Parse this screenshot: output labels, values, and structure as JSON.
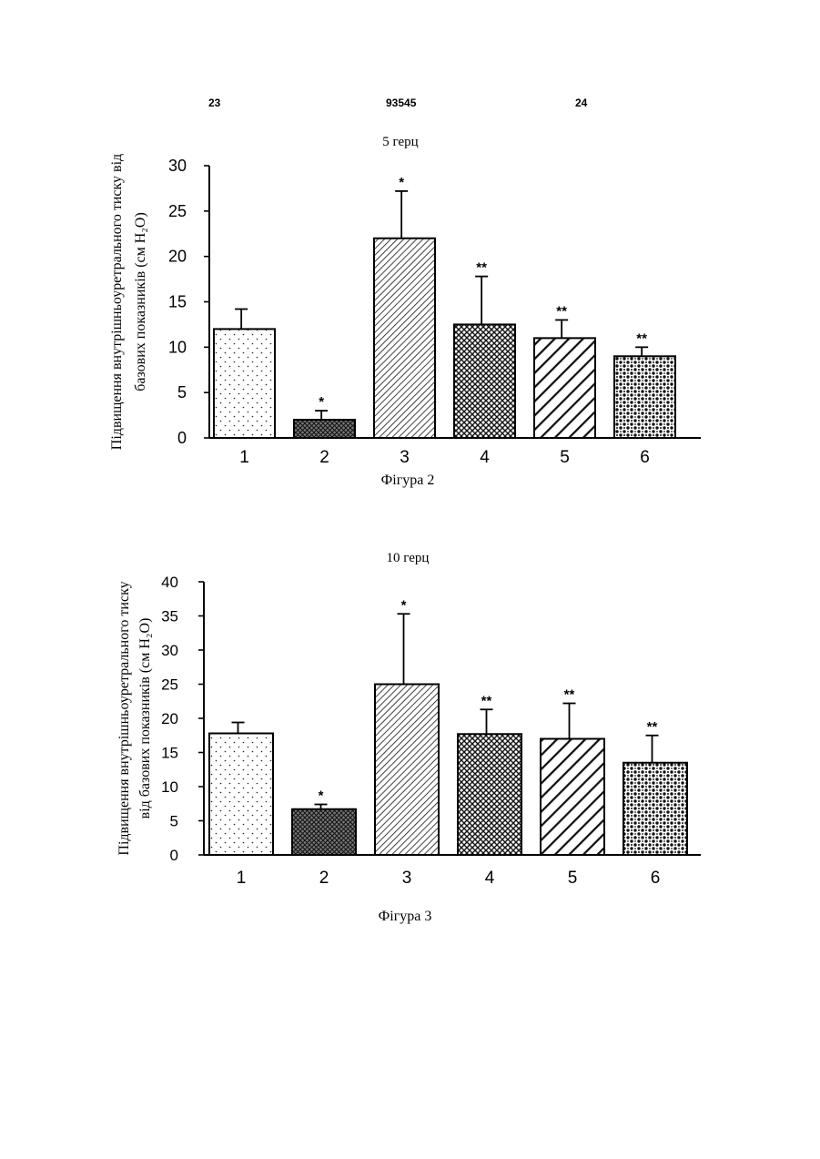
{
  "header": {
    "left": "23",
    "center": "93545",
    "right": "24"
  },
  "chart_data": [
    {
      "type": "bar",
      "title": "5 герц",
      "caption": "Фігура 2",
      "ylabel_lines": [
        "Підвищення внутрішньоуретрального тиску від",
        "базових показників (см H₂O)"
      ],
      "categories": [
        "1",
        "2",
        "3",
        "4",
        "5",
        "6"
      ],
      "values": [
        12,
        2,
        22,
        12.5,
        11,
        9
      ],
      "errors": [
        2.2,
        1,
        5.2,
        5.3,
        2,
        1
      ],
      "significance": [
        "",
        "*",
        "*",
        "**",
        "**",
        "**"
      ],
      "patterns": [
        "dots",
        "crosshatch",
        "diag-fine",
        "crosshatch-dense",
        "diag-bold",
        "speckle"
      ],
      "ylim": [
        0,
        30
      ],
      "yticks": [
        0,
        5,
        10,
        15,
        20,
        25,
        30
      ],
      "grid": false
    },
    {
      "type": "bar",
      "title": "10 герц",
      "caption": "Фігура 3",
      "ylabel_lines": [
        "Підвищення внутрішньоуретрального тиску",
        "від базових показників (см H₂O)"
      ],
      "categories": [
        "1",
        "2",
        "3",
        "4",
        "5",
        "6"
      ],
      "values": [
        17.8,
        6.7,
        25,
        17.7,
        17,
        13.5
      ],
      "errors": [
        1.6,
        0.7,
        10.3,
        3.6,
        5.2,
        4
      ],
      "significance": [
        "",
        "*",
        "*",
        "**",
        "**",
        "**"
      ],
      "patterns": [
        "dots",
        "crosshatch",
        "diag-fine",
        "crosshatch-dense",
        "diag-bold",
        "speckle"
      ],
      "ylim": [
        0,
        40
      ],
      "yticks": [
        0,
        5,
        10,
        15,
        20,
        25,
        30,
        35,
        40
      ],
      "grid": false
    }
  ]
}
